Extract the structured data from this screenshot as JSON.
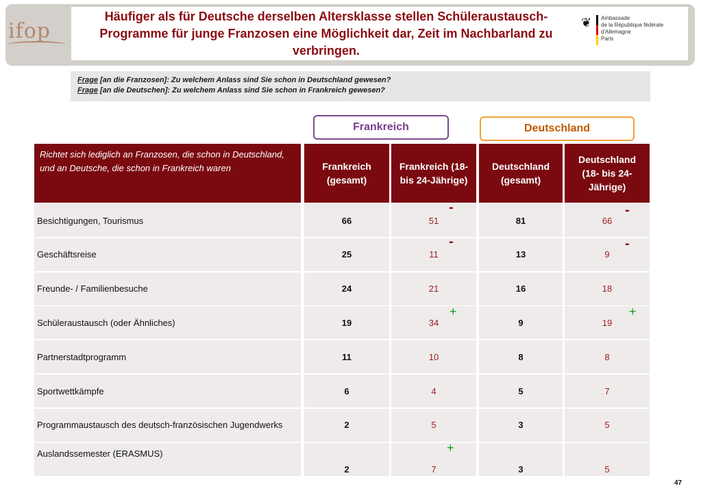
{
  "header": {
    "title": "Häufiger als für Deutsche derselben Altersklasse stellen Schüleraustausch-Programme für junge Franzosen eine Möglichkeit dar, Zeit im Nachbarland zu verbringen.",
    "logo_text": "ifop",
    "embassy_lines": [
      "Ambassade",
      "de la République fédérale d'Allemagne",
      "Paris"
    ],
    "flag_colors": [
      "#000000",
      "#dd0000",
      "#ffce00"
    ]
  },
  "question": {
    "label": "Frage",
    "line1_text": " [an die Franzosen]: Zu welchem Anlass sind Sie schon in Deutschland gewesen?",
    "line2_text": " [an die Deutschen]: Zu welchem Anlass sind Sie schon in Frankreich gewesen?"
  },
  "tabs": {
    "france": "Frankreich",
    "germany": "Deutschland"
  },
  "table": {
    "note": "Richtet sich lediglich an Franzosen, die schon in Deutschland, und an Deutsche, die schon in Frankreich waren",
    "columns": [
      "Frankreich (gesamt)",
      "Frankreich (18- bis 24-Jährige)",
      "Deutschland (gesamt)",
      "Deutschland (18- bis 24-Jährige)"
    ],
    "rows": [
      {
        "label": "Besichtigungen, Tourismus",
        "values": [
          "66",
          "51",
          "81",
          "66"
        ]
      },
      {
        "label": "Geschäftsreise",
        "values": [
          "25",
          "11",
          "13",
          "9"
        ]
      },
      {
        "label": "Freunde- / Familienbesuche",
        "values": [
          "24",
          "21",
          "16",
          "18"
        ]
      },
      {
        "label": "Schüleraustausch (oder Ähnliches)",
        "values": [
          "19",
          "34",
          "9",
          "19"
        ]
      },
      {
        "label": "Partnerstadtprogramm",
        "values": [
          "11",
          "10",
          "8",
          "8"
        ]
      },
      {
        "label": "Sportwettkämpfe",
        "values": [
          "6",
          "4",
          "5",
          "7"
        ]
      },
      {
        "label": "Programmaustausch des deutsch-französischen Jugendwerks",
        "values": [
          "2",
          "5",
          "3",
          "5"
        ]
      },
      {
        "label": "Auslandssemester (ERASMUS)",
        "values": [
          "2",
          "7",
          "3",
          "5"
        ]
      }
    ]
  },
  "significance": {
    "minus": "-",
    "plus": "+"
  },
  "colors": {
    "title": "#8b0d12",
    "header_bg": "#7a0a10",
    "row_bg": "#eeebea",
    "france_accent": "#7b3d8e",
    "germany_accent": "#f0a23c",
    "minus": "#8b0d12",
    "plus": "#12a012"
  },
  "page_number": "47"
}
